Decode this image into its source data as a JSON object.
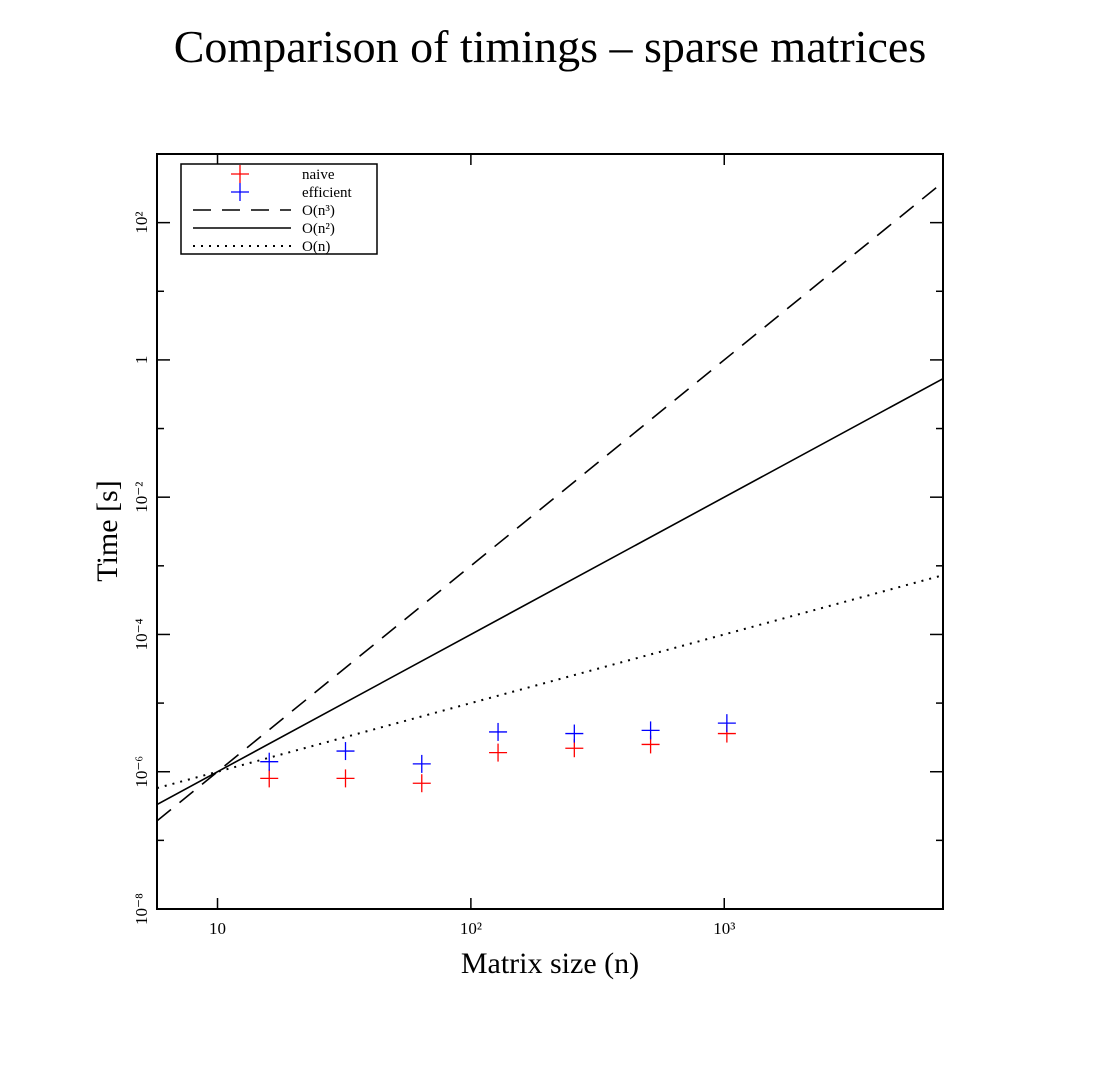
{
  "chart_data": {
    "type": "scatter",
    "title": "Comparison of timings – sparse matrices",
    "xlabel": "Matrix size (n)",
    "ylabel": "Time [s]",
    "xscale": "log",
    "yscale": "log",
    "xlim": [
      5.77,
      7300
    ],
    "ylim": [
      1e-08,
      1000
    ],
    "x_ticks": [
      {
        "value": 10,
        "label": "10"
      },
      {
        "value": 100,
        "label": "10²"
      },
      {
        "value": 1000,
        "label": "10³"
      }
    ],
    "y_ticks": [
      {
        "value": 1e-08,
        "label": "10⁻⁸"
      },
      {
        "value": 1e-06,
        "label": "10⁻⁶"
      },
      {
        "value": 0.0001,
        "label": "10⁻⁴"
      },
      {
        "value": 0.01,
        "label": "10⁻²"
      },
      {
        "value": 1,
        "label": "1"
      },
      {
        "value": 100,
        "label": "10²"
      }
    ],
    "legend_position": "top-left",
    "series": [
      {
        "name": "naive",
        "kind": "points",
        "color": "#ff0000",
        "x": [
          16,
          32,
          64,
          128,
          256,
          512,
          1024
        ],
        "y": [
          8e-07,
          8e-07,
          6.8e-07,
          1.9e-06,
          2.2e-06,
          2.5e-06,
          3.6e-06
        ]
      },
      {
        "name": "efficient",
        "kind": "points",
        "color": "#0000ff",
        "x": [
          16,
          32,
          64,
          128,
          256,
          512,
          1024
        ],
        "y": [
          1.4e-06,
          2e-06,
          1.3e-06,
          3.8e-06,
          3.6e-06,
          4e-06,
          5.1e-06
        ]
      },
      {
        "name": "O(n³)",
        "kind": "line",
        "style": "dashed",
        "color": "#000000",
        "coef": 1e-09,
        "power": 3
      },
      {
        "name": "O(n²)",
        "kind": "line",
        "style": "solid",
        "color": "#000000",
        "coef": 1e-08,
        "power": 2
      },
      {
        "name": "O(n)",
        "kind": "line",
        "style": "dotted",
        "color": "#000000",
        "coef": 1e-07,
        "power": 1
      }
    ]
  }
}
